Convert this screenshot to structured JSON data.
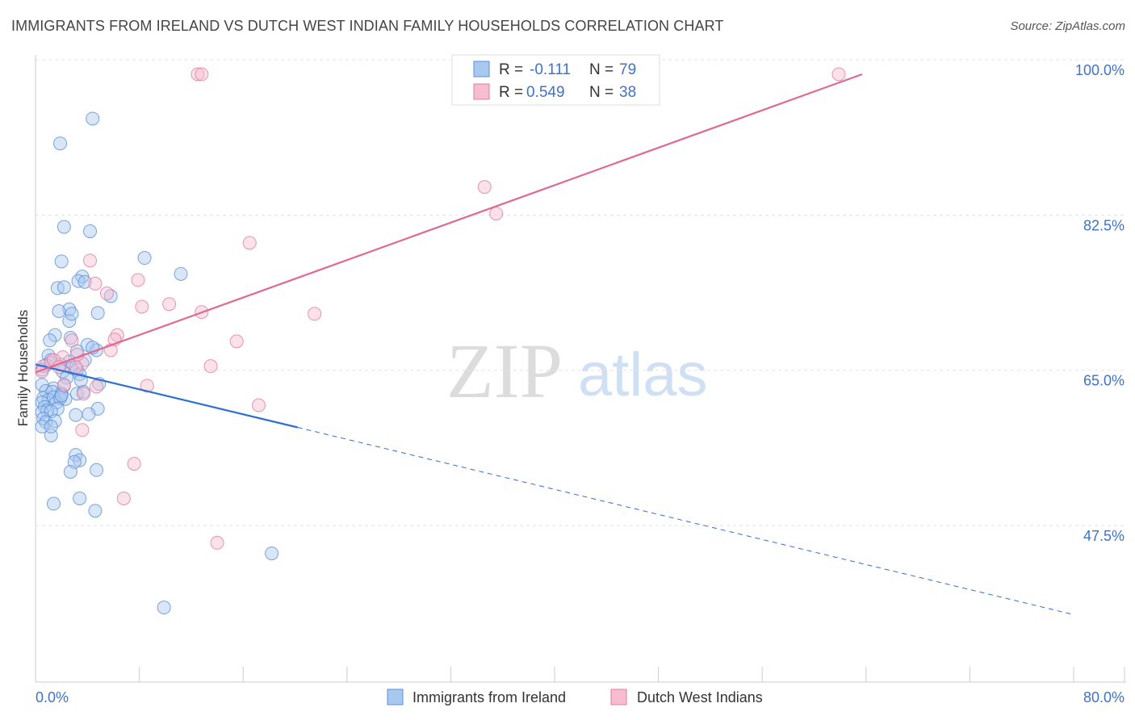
{
  "title": "IMMIGRANTS FROM IRELAND VS DUTCH WEST INDIAN FAMILY HOUSEHOLDS CORRELATION CHART",
  "source": "Source: ZipAtlas.com",
  "watermark": {
    "zip": "ZIP",
    "atlas": "atlas"
  },
  "legend": {
    "rows": [
      {
        "r_label": "R =",
        "r_value": "-0.111",
        "n_label": "N =",
        "n_value": "79",
        "color": "#a9c8f0",
        "stroke": "#5b8fd6"
      },
      {
        "r_label": "R =",
        "r_value": "0.549",
        "n_label": "N =",
        "n_value": "38",
        "color": "#f6bcd0",
        "stroke": "#e07ca0"
      }
    ]
  },
  "bottom_legend": [
    "Immigrants from Ireland",
    "Dutch West Indians"
  ],
  "chart_data": {
    "type": "scatter",
    "title": "IMMIGRANTS FROM IRELAND VS DUTCH WEST INDIAN FAMILY HOUSEHOLDS CORRELATION CHART",
    "xlabel": "",
    "ylabel": "Family Households",
    "xlim": [
      0,
      80
    ],
    "ylim": [
      31.5,
      102
    ],
    "x_tick_labels": [
      "0.0%",
      "80.0%"
    ],
    "y_ticks": [
      47.5,
      65.0,
      82.5,
      100.0
    ],
    "y_tick_labels": [
      "47.5%",
      "65.0%",
      "82.5%",
      "100.0%"
    ],
    "grid": true,
    "series": [
      {
        "name": "Immigrants from Ireland",
        "color": "#a9c8f0",
        "stroke": "#5b8fd6",
        "trend": {
          "x0": 0,
          "y0": 67.3,
          "x1": 20.2,
          "y1": 60.2,
          "dash_to_x": 80,
          "dash_to_y": 39.1,
          "color": "#2f6fd0"
        },
        "points": [
          [
            4.4,
            95.0
          ],
          [
            1.9,
            92.2
          ],
          [
            2.2,
            82.8
          ],
          [
            4.2,
            82.3
          ],
          [
            8.4,
            79.3
          ],
          [
            2.0,
            78.9
          ],
          [
            11.2,
            77.5
          ],
          [
            3.6,
            77.2
          ],
          [
            3.3,
            76.7
          ],
          [
            1.7,
            75.9
          ],
          [
            2.2,
            76.0
          ],
          [
            3.8,
            76.6
          ],
          [
            5.8,
            75.0
          ],
          [
            2.6,
            73.5
          ],
          [
            1.8,
            73.3
          ],
          [
            4.8,
            73.1
          ],
          [
            2.6,
            72.2
          ],
          [
            2.8,
            73.0
          ],
          [
            1.5,
            70.6
          ],
          [
            2.7,
            70.3
          ],
          [
            1.1,
            70.0
          ],
          [
            4.0,
            69.5
          ],
          [
            4.7,
            68.9
          ],
          [
            3.2,
            68.8
          ],
          [
            4.4,
            69.2
          ],
          [
            1.0,
            68.3
          ],
          [
            1.2,
            67.8
          ],
          [
            2.6,
            67.6
          ],
          [
            3.8,
            67.8
          ],
          [
            0.8,
            67.2
          ],
          [
            1.9,
            67.3
          ],
          [
            2.8,
            66.9
          ],
          [
            3.2,
            66.7
          ],
          [
            2.1,
            66.5
          ],
          [
            0.5,
            66.7
          ],
          [
            3.4,
            66.2
          ],
          [
            2.4,
            65.8
          ],
          [
            3.5,
            65.5
          ],
          [
            4.9,
            65.1
          ],
          [
            1.4,
            64.6
          ],
          [
            2.2,
            64.9
          ],
          [
            0.5,
            65.0
          ],
          [
            0.8,
            64.3
          ],
          [
            1.3,
            64.2
          ],
          [
            3.2,
            64.0
          ],
          [
            2.0,
            64.0
          ],
          [
            3.7,
            64.2
          ],
          [
            0.6,
            63.5
          ],
          [
            1.0,
            63.3
          ],
          [
            1.4,
            63.6
          ],
          [
            2.3,
            63.4
          ],
          [
            0.5,
            63.0
          ],
          [
            1.6,
            63.0
          ],
          [
            1.9,
            63.5
          ],
          [
            0.7,
            62.5
          ],
          [
            1.7,
            62.3
          ],
          [
            0.9,
            62.1
          ],
          [
            4.8,
            62.3
          ],
          [
            0.5,
            61.9
          ],
          [
            1.2,
            62.0
          ],
          [
            3.1,
            61.6
          ],
          [
            4.1,
            61.7
          ],
          [
            0.6,
            61.2
          ],
          [
            0.8,
            60.8
          ],
          [
            1.5,
            60.9
          ],
          [
            0.5,
            60.3
          ],
          [
            1.2,
            59.3
          ],
          [
            3.1,
            57.1
          ],
          [
            3.4,
            56.5
          ],
          [
            3.0,
            56.3
          ],
          [
            4.7,
            55.4
          ],
          [
            2.7,
            55.2
          ],
          [
            3.4,
            52.2
          ],
          [
            1.4,
            51.6
          ],
          [
            4.6,
            50.8
          ],
          [
            18.2,
            46.0
          ],
          [
            9.9,
            39.9
          ],
          [
            1.2,
            60.3
          ],
          [
            2.0,
            63.8
          ]
        ]
      },
      {
        "name": "Dutch West Indians",
        "color": "#f6bcd0",
        "stroke": "#e07ca0",
        "trend": {
          "x0": 0,
          "y0": 66.4,
          "x1": 63.7,
          "y1": 100.0,
          "color": "#e06891"
        },
        "points": [
          [
            12.5,
            100.0
          ],
          [
            12.8,
            100.0
          ],
          [
            61.9,
            100.0
          ],
          [
            34.6,
            87.3
          ],
          [
            35.5,
            84.3
          ],
          [
            16.5,
            81.0
          ],
          [
            4.2,
            79.0
          ],
          [
            7.9,
            76.8
          ],
          [
            4.6,
            76.4
          ],
          [
            5.5,
            75.3
          ],
          [
            8.2,
            73.8
          ],
          [
            10.3,
            74.1
          ],
          [
            12.8,
            73.2
          ],
          [
            21.5,
            73.0
          ],
          [
            6.3,
            70.6
          ],
          [
            6.1,
            70.1
          ],
          [
            15.5,
            69.9
          ],
          [
            2.8,
            70.0
          ],
          [
            5.8,
            68.9
          ],
          [
            2.1,
            68.1
          ],
          [
            3.6,
            67.4
          ],
          [
            0.6,
            67.1
          ],
          [
            1.2,
            67.5
          ],
          [
            3.1,
            67.0
          ],
          [
            13.5,
            67.1
          ],
          [
            1.4,
            67.8
          ],
          [
            2.2,
            65.0
          ],
          [
            4.7,
            64.8
          ],
          [
            8.6,
            64.9
          ],
          [
            3.7,
            64.0
          ],
          [
            17.2,
            62.7
          ],
          [
            3.6,
            59.9
          ],
          [
            7.6,
            56.1
          ],
          [
            6.8,
            52.2
          ],
          [
            14.0,
            47.2
          ],
          [
            0.5,
            66.5
          ],
          [
            1.8,
            67.0
          ],
          [
            3.2,
            68.4
          ]
        ]
      }
    ]
  }
}
